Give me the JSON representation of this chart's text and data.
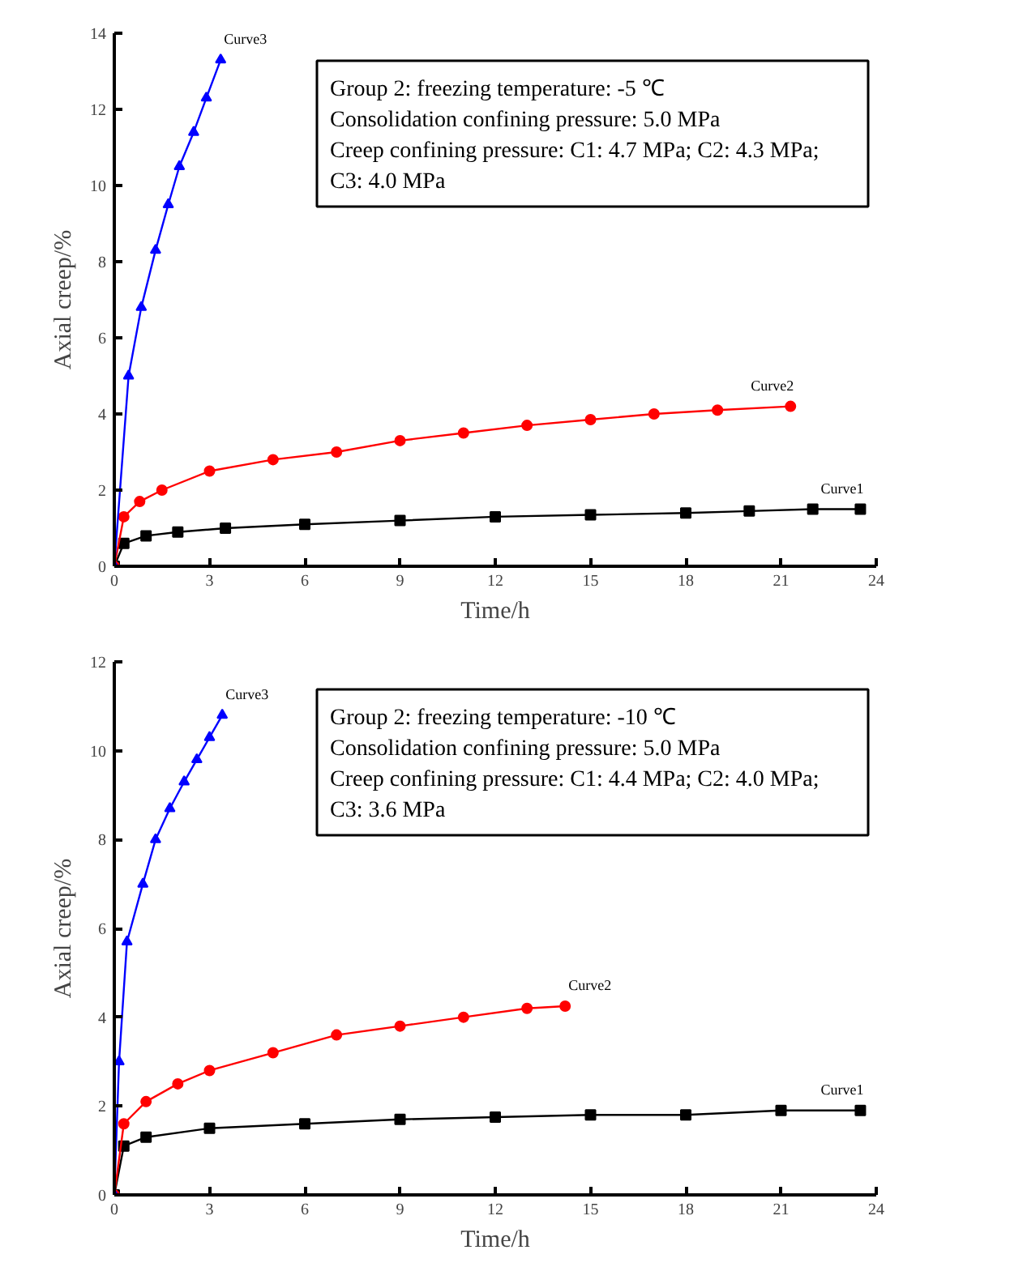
{
  "chart_data": [
    {
      "type": "line",
      "xlabel": "Time/h",
      "ylabel": "Axial creep/%",
      "xlim": [
        0,
        24
      ],
      "ylim": [
        0,
        14
      ],
      "xticks": [
        0,
        3,
        6,
        9,
        12,
        15,
        18,
        21,
        24
      ],
      "yticks": [
        0,
        2,
        4,
        6,
        8,
        10,
        12,
        14
      ],
      "grid": false,
      "line_style": "solid",
      "annotations": [
        "Group 2: freezing temperature: -5 ℃",
        "Consolidation confining pressure: 5.0 MPa",
        "Creep confining pressure: C1: 4.7 MPa; C2: 4.3 MPa;",
        "C3: 4.0 MPa"
      ],
      "series": [
        {
          "name": "Curve1",
          "color": "#000000",
          "marker": "square",
          "x": [
            0,
            0.3,
            1,
            2,
            3.5,
            6,
            9,
            12,
            15,
            18,
            20,
            22,
            23.5
          ],
          "values": [
            0,
            0.6,
            0.8,
            0.9,
            1.0,
            1.1,
            1.2,
            1.3,
            1.35,
            1.4,
            1.45,
            1.5,
            1.5
          ]
        },
        {
          "name": "Curve2",
          "color": "#ff0000",
          "marker": "circle",
          "x": [
            0,
            0.3,
            0.8,
            1.5,
            3,
            5,
            7,
            9,
            11,
            13,
            15,
            17,
            19,
            21.3
          ],
          "values": [
            0,
            1.3,
            1.7,
            2.0,
            2.5,
            2.8,
            3.0,
            3.3,
            3.5,
            3.7,
            3.85,
            4.0,
            4.1,
            4.2
          ]
        },
        {
          "name": "Curve3",
          "color": "#0000ff",
          "marker": "triangle",
          "x": [
            0,
            0.45,
            0.85,
            1.3,
            1.7,
            2.05,
            2.5,
            2.9,
            3.35
          ],
          "values": [
            0,
            5.0,
            6.8,
            8.3,
            9.5,
            10.5,
            11.4,
            12.3,
            13.3
          ]
        }
      ]
    },
    {
      "type": "line",
      "xlabel": "Time/h",
      "ylabel": "Axial creep/%",
      "xlim": [
        0,
        24
      ],
      "ylim": [
        0,
        12
      ],
      "xticks": [
        0,
        3,
        6,
        9,
        12,
        15,
        18,
        21,
        24
      ],
      "yticks": [
        0,
        2,
        4,
        6,
        8,
        10,
        12
      ],
      "grid": false,
      "line_style": "solid",
      "annotations": [
        "Group 2: freezing temperature: -10 ℃",
        "Consolidation confining pressure: 5.0 MPa",
        "Creep confining pressure: C1: 4.4 MPa; C2: 4.0 MPa;",
        "C3: 3.6 MPa"
      ],
      "series": [
        {
          "name": "Curve1",
          "color": "#000000",
          "marker": "square",
          "x": [
            0,
            0.3,
            1,
            3,
            6,
            9,
            12,
            15,
            18,
            21,
            23.5
          ],
          "values": [
            0,
            1.1,
            1.3,
            1.5,
            1.6,
            1.7,
            1.75,
            1.8,
            1.8,
            1.9,
            1.9
          ]
        },
        {
          "name": "Curve2",
          "color": "#ff0000",
          "marker": "circle",
          "x": [
            0,
            0.3,
            1,
            2,
            3,
            5,
            7,
            9,
            11,
            13,
            14.2
          ],
          "values": [
            0,
            1.6,
            2.1,
            2.5,
            2.8,
            3.2,
            3.6,
            3.8,
            4.0,
            4.2,
            4.25
          ]
        },
        {
          "name": "Curve3",
          "color": "#0000ff",
          "marker": "triangle",
          "x": [
            0,
            0.15,
            0.4,
            0.9,
            1.3,
            1.75,
            2.2,
            2.6,
            3.0,
            3.4
          ],
          "values": [
            0,
            3.0,
            5.7,
            7.0,
            8.0,
            8.7,
            9.3,
            9.8,
            10.3,
            10.8
          ]
        }
      ]
    }
  ]
}
